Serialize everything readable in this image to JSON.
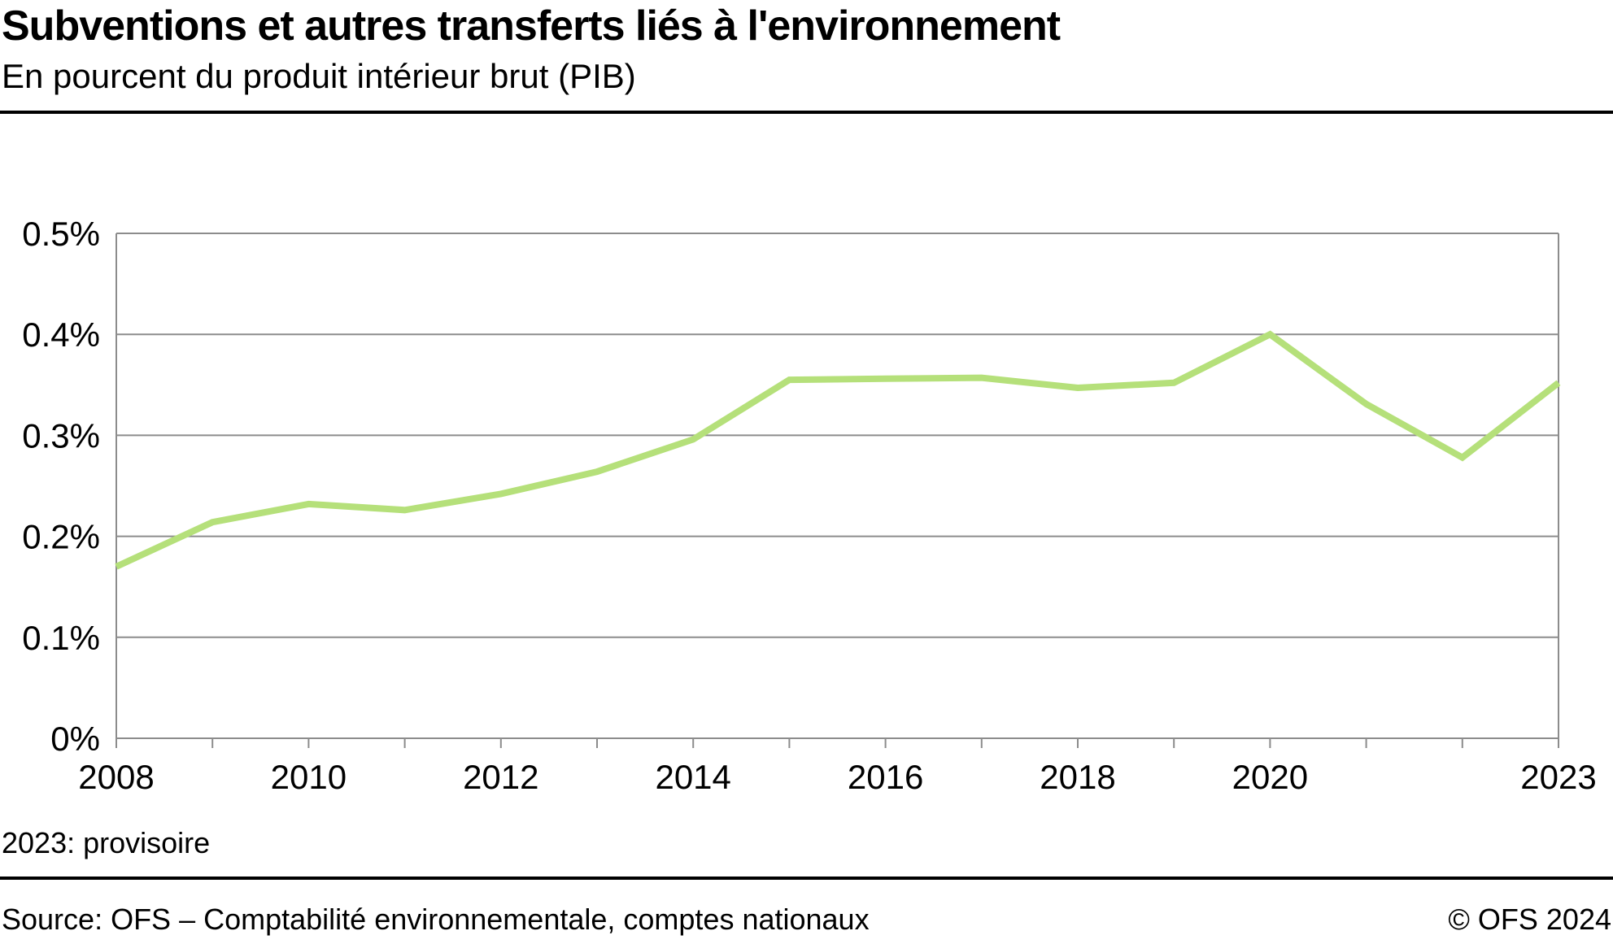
{
  "header": {
    "title": "Subventions et autres transferts liés à l'environnement",
    "subtitle": "En pourcent du produit intérieur brut (PIB)"
  },
  "footer": {
    "note": "2023: provisoire",
    "source": "Source: OFS – Comptabilité environnementale, comptes nationaux",
    "copyright": "© OFS 2024"
  },
  "colors": {
    "line": "#b5e07a",
    "grid": "#8c8c8c",
    "axis": "#8c8c8c"
  },
  "chart_data": {
    "type": "line",
    "title": "Subventions et autres transferts liés à l'environnement",
    "subtitle": "En pourcent du produit intérieur brut (PIB)",
    "x": [
      2008,
      2009,
      2010,
      2011,
      2012,
      2013,
      2014,
      2015,
      2016,
      2017,
      2018,
      2019,
      2020,
      2021,
      2022,
      2023
    ],
    "series": [
      {
        "values": [
          0.17,
          0.214,
          0.232,
          0.226,
          0.242,
          0.264,
          0.296,
          0.355,
          0.356,
          0.357,
          0.347,
          0.352,
          0.4,
          0.331,
          0.278,
          0.352
        ]
      }
    ],
    "xlim": [
      2008,
      2023
    ],
    "ylim": [
      0,
      0.5
    ],
    "yticks": [
      0,
      0.1,
      0.2,
      0.3,
      0.4,
      0.5
    ],
    "ytick_labels": [
      "0%",
      "0.1%",
      "0.2%",
      "0.3%",
      "0.4%",
      "0.5%"
    ],
    "xtick_labels": [
      "2008",
      "2010",
      "2012",
      "2014",
      "2016",
      "2018",
      "2020",
      "2023"
    ],
    "grid": true,
    "legend": "none"
  }
}
